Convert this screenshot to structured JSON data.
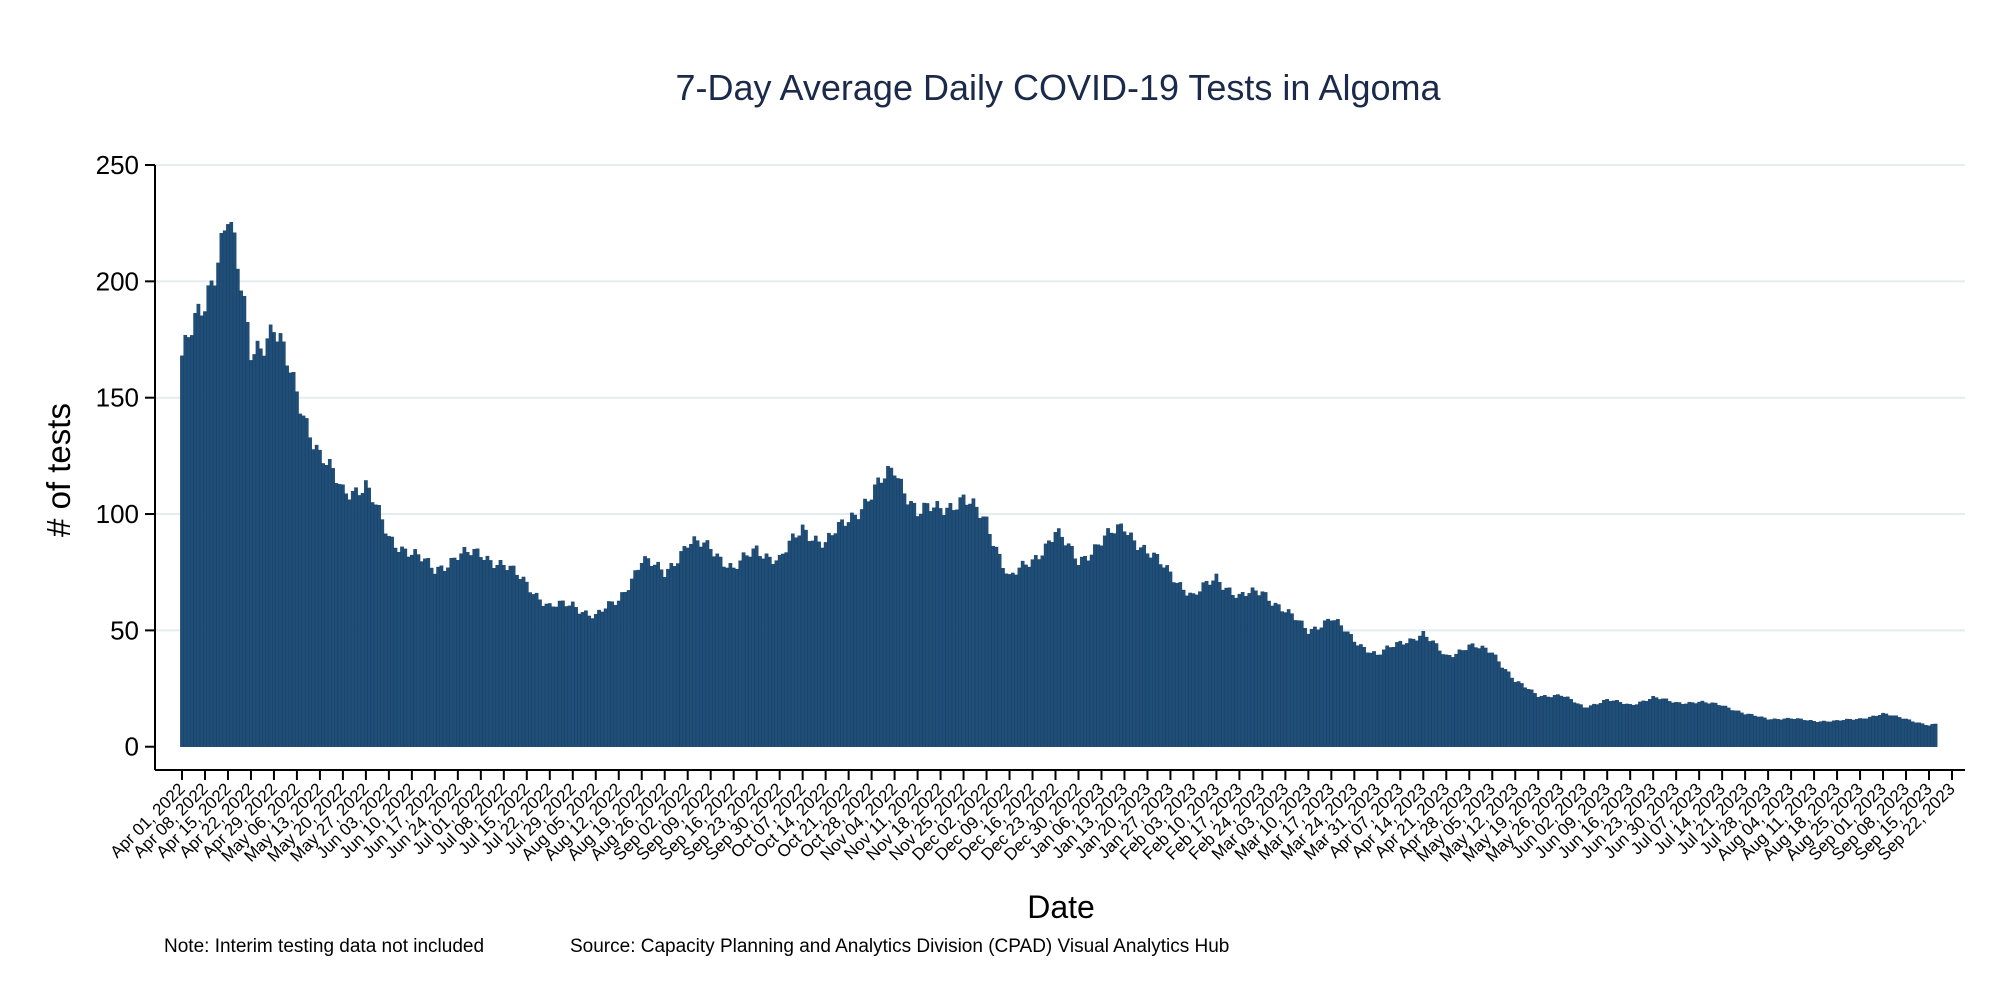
{
  "chart_data": {
    "type": "bar",
    "title": "7-Day Average Daily COVID-19 Tests in Algoma",
    "xlabel": "Date",
    "ylabel": "# of tests",
    "x_start": "2022-04-01",
    "x_end": "2023-09-17",
    "xlim": [
      "2022-04-01",
      "2023-09-22"
    ],
    "ylim": [
      -10,
      250
    ],
    "yticks": [
      0,
      50,
      100,
      150,
      200,
      250
    ],
    "xticks": [
      "Apr 01, 2022",
      "Apr 08, 2022",
      "Apr 15, 2022",
      "Apr 22, 2022",
      "Apr 29, 2022",
      "May 06, 2022",
      "May 13, 2022",
      "May 20, 2022",
      "May 27, 2022",
      "Jun 03, 2022",
      "Jun 10, 2022",
      "Jun 17, 2022",
      "Jun 24, 2022",
      "Jul 01, 2022",
      "Jul 08, 2022",
      "Jul 15, 2022",
      "Jul 22, 2022",
      "Jul 29, 2022",
      "Aug 05, 2022",
      "Aug 12, 2022",
      "Aug 19, 2022",
      "Aug 26, 2022",
      "Sep 02, 2022",
      "Sep 09, 2022",
      "Sep 16, 2022",
      "Sep 23, 2022",
      "Sep 30, 2022",
      "Oct 07, 2022",
      "Oct 14, 2022",
      "Oct 21, 2022",
      "Oct 28, 2022",
      "Nov 04, 2022",
      "Nov 11, 2022",
      "Nov 18, 2022",
      "Nov 25, 2022",
      "Dec 02, 2022",
      "Dec 09, 2022",
      "Dec 16, 2022",
      "Dec 23, 2022",
      "Dec 30, 2022",
      "Jan 06, 2023",
      "Jan 13, 2023",
      "Jan 20, 2023",
      "Jan 27, 2023",
      "Feb 03, 2023",
      "Feb 10, 2023",
      "Feb 17, 2023",
      "Feb 24, 2023",
      "Mar 03, 2023",
      "Mar 10, 2023",
      "Mar 17, 2023",
      "Mar 24, 2023",
      "Mar 31, 2023",
      "Apr 07, 2023",
      "Apr 14, 2023",
      "Apr 21, 2023",
      "Apr 28, 2023",
      "May 05, 2023",
      "May 12, 2023",
      "May 19, 2023",
      "May 26, 2023",
      "Jun 02, 2023",
      "Jun 09, 2023",
      "Jun 16, 2023",
      "Jun 23, 2023",
      "Jun 30, 2023",
      "Jul 07, 2023",
      "Jul 14, 2023",
      "Jul 21, 2023",
      "Jul 28, 2023",
      "Aug 04, 2023",
      "Aug 11, 2023",
      "Aug 18, 2023",
      "Aug 25, 2023",
      "Sep 01, 2023",
      "Sep 08, 2023",
      "Sep 15, 2023",
      "Sep 22, 2023"
    ],
    "grid": true,
    "legend": "none",
    "bar_color": "#1f4e79",
    "weekly_values": [
      168,
      190,
      230,
      170,
      180,
      152,
      125,
      110,
      112,
      90,
      83,
      76,
      82,
      83,
      78,
      70,
      60,
      61,
      56,
      63,
      80,
      75,
      87,
      86,
      76,
      85,
      80,
      94,
      87,
      98,
      108,
      120,
      100,
      103,
      106,
      97,
      72,
      80,
      92,
      80,
      88,
      95,
      83,
      75,
      64,
      73,
      64,
      67,
      58,
      50,
      55,
      46,
      39,
      45,
      48,
      39,
      43,
      41,
      28,
      22,
      22,
      17,
      20,
      18,
      21,
      19,
      19,
      18,
      14,
      12,
      12,
      11,
      11,
      12,
      14,
      12,
      9,
      11,
      15,
      11,
      13
    ]
  },
  "footer": {
    "note": "Note: Interim testing data not included",
    "source": "Source: Capacity Planning and Analytics Division (CPAD) Visual Analytics Hub"
  }
}
